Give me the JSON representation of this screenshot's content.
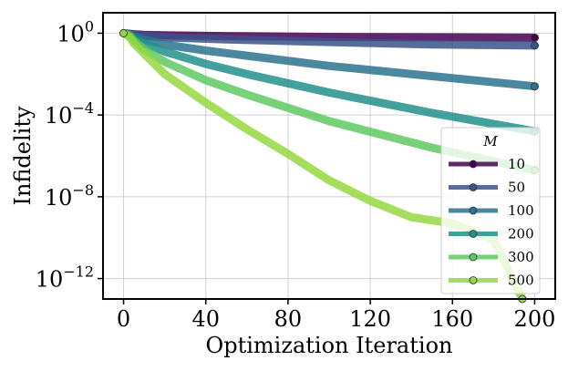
{
  "chart_data": {
    "type": "line",
    "xlabel": "Optimization Iteration",
    "ylabel": "Infidelity",
    "xlim": [
      -10,
      210
    ],
    "ylim_log10": [
      -13.0,
      1.0
    ],
    "y_scale": "log",
    "grid": true,
    "x_ticks": [
      0,
      40,
      80,
      120,
      160,
      200
    ],
    "x_tick_labels": [
      "0",
      "40",
      "80",
      "120",
      "160",
      "200"
    ],
    "y_ticks_log10": [
      0,
      -4,
      -8,
      -12
    ],
    "y_tick_labels": [
      {
        "base": "10",
        "exp": "0"
      },
      {
        "base": "10",
        "exp": "−4"
      },
      {
        "base": "10",
        "exp": "−8"
      },
      {
        "base": "10",
        "exp": "−12"
      }
    ],
    "legend": {
      "title": "M",
      "placement": "lower-right"
    },
    "series": [
      {
        "name": "10",
        "color": "#440154",
        "x": [
          0,
          2,
          5,
          10,
          20,
          50,
          100,
          150,
          200
        ],
        "log10_y": [
          0,
          -0.02,
          -0.05,
          -0.08,
          -0.1,
          -0.14,
          -0.18,
          -0.2,
          -0.22
        ]
      },
      {
        "name": "50",
        "color": "#3b528b",
        "x": [
          0,
          2,
          5,
          10,
          20,
          50,
          100,
          150,
          200
        ],
        "log10_y": [
          0,
          -0.03,
          -0.08,
          -0.13,
          -0.2,
          -0.3,
          -0.43,
          -0.55,
          -0.6
        ]
      },
      {
        "name": "100",
        "color": "#2c728e",
        "x": [
          0,
          3,
          5,
          10,
          20,
          40,
          60,
          100,
          150,
          200
        ],
        "log10_y": [
          0,
          -0.05,
          -0.15,
          -0.3,
          -0.55,
          -0.85,
          -1.1,
          -1.6,
          -2.1,
          -2.6
        ]
      },
      {
        "name": "200",
        "color": "#21918c",
        "x": [
          0,
          3,
          5,
          10,
          20,
          40,
          60,
          100,
          150,
          200
        ],
        "log10_y": [
          0,
          -0.1,
          -0.25,
          -0.5,
          -0.9,
          -1.5,
          -2.0,
          -2.9,
          -3.9,
          -4.8
        ]
      },
      {
        "name": "300",
        "color": "#5ec962",
        "x": [
          0,
          3,
          5,
          10,
          20,
          40,
          60,
          100,
          150,
          200
        ],
        "log10_y": [
          0,
          -0.15,
          -0.35,
          -0.8,
          -1.4,
          -2.3,
          -3.0,
          -4.3,
          -5.6,
          -6.7
        ]
      },
      {
        "name": "500",
        "color": "#95d840",
        "x": [
          0,
          3,
          5,
          10,
          20,
          40,
          60,
          80,
          100,
          120,
          140,
          160,
          180,
          194
        ],
        "log10_y": [
          0,
          -0.2,
          -0.5,
          -1.0,
          -2.0,
          -3.4,
          -4.7,
          -5.9,
          -7.2,
          -8.2,
          -9.0,
          -9.3,
          -10.1,
          -13.0
        ]
      }
    ]
  }
}
